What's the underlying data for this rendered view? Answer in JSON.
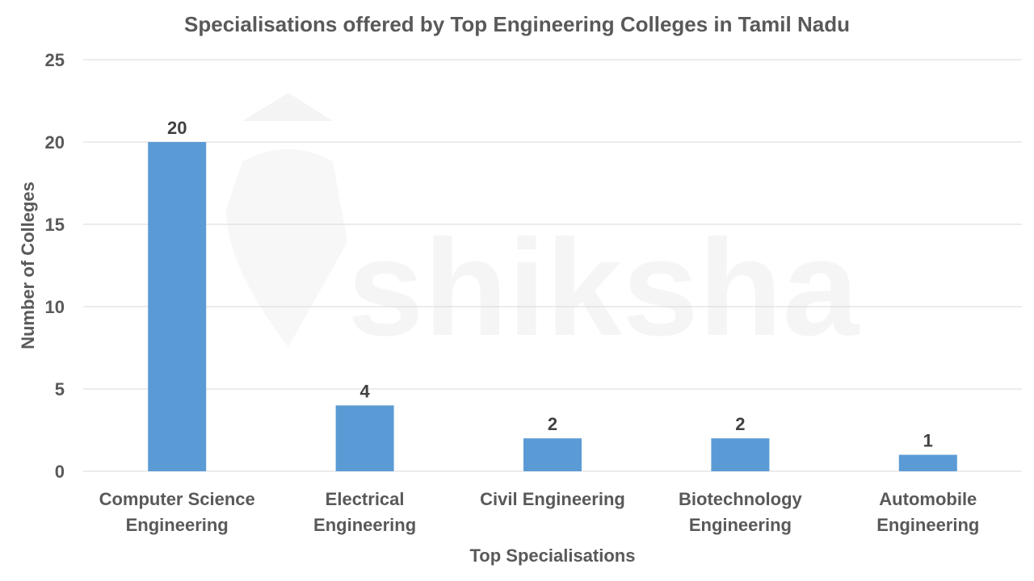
{
  "chart_data": {
    "type": "bar",
    "title": "Specialisations offered by Top Engineering Colleges in Tamil Nadu",
    "xlabel": "Top Specialisations",
    "ylabel": "Number of Colleges",
    "categories": [
      [
        "Computer Science",
        "Engineering"
      ],
      [
        "Electrical",
        "Engineering"
      ],
      [
        "Civil Engineering"
      ],
      [
        "Biotechnology",
        "Engineering"
      ],
      [
        "Automobile",
        "Engineering"
      ]
    ],
    "values": [
      20,
      4,
      2,
      2,
      1
    ],
    "data_labels": [
      "20",
      "4",
      "2",
      "2",
      "1"
    ],
    "ylim": [
      0,
      25
    ],
    "yticks": [
      "0",
      "5",
      "10",
      "15",
      "20",
      "25"
    ],
    "grid": true,
    "legend": "none",
    "bar_color": "#5B9BD5",
    "watermark": "shiksha"
  }
}
